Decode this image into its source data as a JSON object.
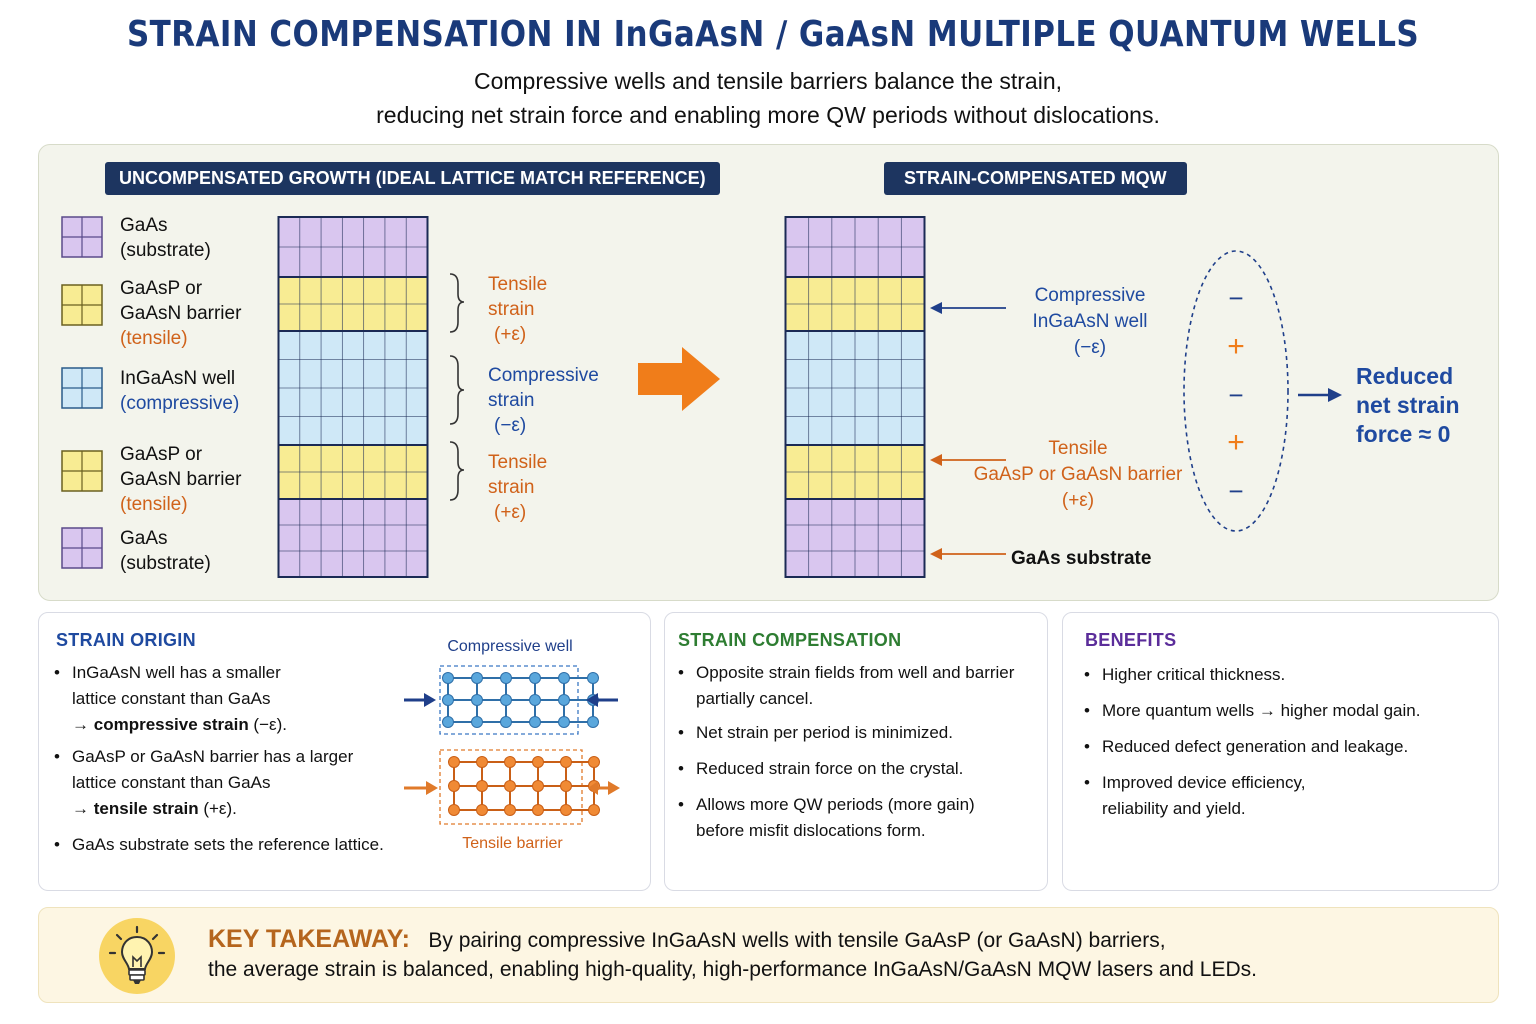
{
  "title": "STRAIN COMPENSATION IN InGaAsN / GaAsN MULTIPLE QUANTUM WELLS",
  "subtitle_line1": "Compressive wells and tensile barriers balance the strain,",
  "subtitle_line2": "reducing net strain force and enabling more QW periods without dislocations.",
  "colors": {
    "substrate": "#d9c6ef",
    "barrier": "#f8ec93",
    "well": "#cfe8f7",
    "grid": "#1b2a55",
    "accent_orange": "#f07d1a",
    "navy": "#1a3a7a"
  },
  "left_panel": {
    "tag": "UNCOMPENSATED GROWTH (IDEAL LATTICE MATCH REFERENCE)",
    "legend": [
      {
        "name": "GaAs",
        "sub": "(substrate)",
        "extra": ""
      },
      {
        "name": "GaAsP or",
        "sub": "GaAsN barrier",
        "extra": "(tensile)"
      },
      {
        "name": "InGaAsN well",
        "sub": "(compressive)",
        "extra": ""
      },
      {
        "name": "GaAsP or",
        "sub": "GaAsN barrier",
        "extra": "(tensile)"
      },
      {
        "name": "GaAs",
        "sub": "(substrate)",
        "extra": ""
      }
    ],
    "annotations": [
      {
        "l1": "Tensile",
        "l2": "strain",
        "l3": "(+ε)"
      },
      {
        "l1": "Compressive",
        "l2": "strain",
        "l3": "(−ε)"
      },
      {
        "l1": "Tensile",
        "l2": "strain",
        "l3": "(+ε)"
      }
    ]
  },
  "right_panel": {
    "tag": "STRAIN-COMPENSATED MQW",
    "well_label": {
      "l1": "Compressive",
      "l2": "InGaAsN well",
      "l3": "(−ε)"
    },
    "barrier_label": {
      "l1": "Tensile",
      "l2": "GaAsP or GaAsN barrier",
      "l3": "(+ε)"
    },
    "substrate_label": "GaAs substrate",
    "signs": [
      "−",
      "+",
      "−",
      "+",
      "−"
    ],
    "result": {
      "l1": "Reduced",
      "l2": "net strain",
      "l3": "force ≈ 0"
    }
  },
  "origin": {
    "heading": "STRAIN ORIGIN",
    "b1_l1": "InGaAsN well has a smaller",
    "b1_l2": "lattice constant than GaAs",
    "b1_l3_pre": "→ ",
    "b1_l3_bold": "compressive strain",
    "b1_l3_post": " (−ε).",
    "b2_l1": "GaAsP or GaAsN barrier has a larger",
    "b2_l2": "lattice constant than GaAs",
    "b2_l3_pre": "→ ",
    "b2_l3_bold": "tensile strain",
    "b2_l3_post": " (+ε).",
    "b3": "GaAs substrate sets the reference lattice.",
    "well_caption": "Compressive well",
    "barrier_caption": "Tensile barrier"
  },
  "compensation": {
    "heading": "STRAIN COMPENSATION",
    "b1_l1": "Opposite strain fields from well and barrier",
    "b1_l2": "partially cancel.",
    "b2": "Net strain per period is minimized.",
    "b3": "Reduced strain force on the crystal.",
    "b4_l1": "Allows more QW periods (more gain)",
    "b4_l2": "before misfit dislocations form."
  },
  "benefits": {
    "heading": "BENEFITS",
    "b1": "Higher critical thickness.",
    "b2": "More quantum wells → higher modal gain.",
    "b3": "Reduced defect generation and leakage.",
    "b4_l1": "Improved device efficiency,",
    "b4_l2": "reliability and yield."
  },
  "takeaway": {
    "label": "KEY TAKEAWAY:",
    "l1": "By pairing compressive InGaAsN wells with tensile GaAsP (or GaAsN) barriers,",
    "l2": "the average strain is balanced, enabling high-quality, high-performance InGaAsN/GaAsN MQW lasers and LEDs."
  }
}
